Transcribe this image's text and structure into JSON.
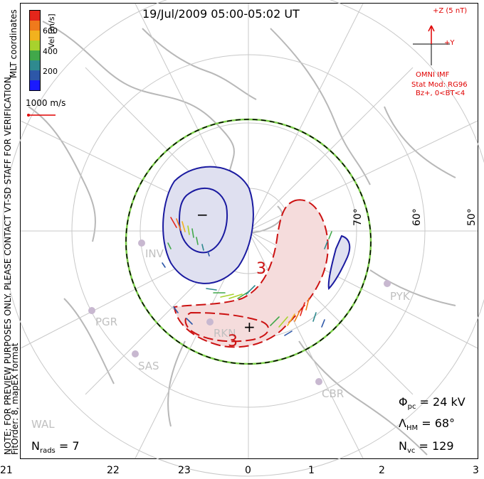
{
  "title": "19/Jul/2009 05:00-05:02 UT",
  "side_note": {
    "line1": "NOTE: FOR PREVIEW PURPOSES ONLY. PLEASE CONTACT VT-SD STAFF FOR VERIFICATION.",
    "line2": "FitOrder: 8, mapEX format"
  },
  "coords_label": "MLT coordinates",
  "colorbar": {
    "label": "Vel [m/s]",
    "ticks": [
      "600",
      "400",
      "200"
    ],
    "colors": [
      "#e4261b",
      "#f07a1c",
      "#f2b21e",
      "#a8d22d",
      "#41a84a",
      "#2f8a8f",
      "#2d57a8",
      "#1a1aff"
    ]
  },
  "scale_vector": "1000 m/s",
  "imf": {
    "z_label": "+Z (5 nT)",
    "y_label": "+Y",
    "source": "OMNI IMF",
    "model": "Stat Mod: RG96",
    "condition": "Bz+, 0<BT<4",
    "color": "#e00000"
  },
  "lat_labels": [
    "70°",
    "60°",
    "50°"
  ],
  "stations": [
    "INV",
    "PYK",
    "PGR",
    "RKN",
    "SAS",
    "CBR",
    "WAL"
  ],
  "contour_labels": {
    "neg_sign": "−",
    "pos_sign": "+",
    "pos_value_1": "3",
    "pos_value_2": "3"
  },
  "stats": {
    "phi_symbol": "Φ",
    "phi_sub": "pc",
    "phi_value": "= 24 kV",
    "lambda_symbol": "Λ",
    "lambda_sub": "HM",
    "lambda_value": "= 68°",
    "nvc_symbol": "N",
    "nvc_sub": "vc",
    "nvc_value": "= 129",
    "nrads_symbol": "N",
    "nrads_sub": "rads",
    "nrads_value": "= 7"
  },
  "mlt_ticks": [
    "21",
    "22",
    "23",
    "0",
    "1",
    "2",
    "3"
  ],
  "colors": {
    "neg_cell_fill": "#dfe0f0",
    "neg_cell_line": "#1a1aa0",
    "pos_cell_fill": "#f5dcdc",
    "pos_cell_line": "#cc1111",
    "grid": "#c8c8c8",
    "coast": "#b8b8b8"
  }
}
